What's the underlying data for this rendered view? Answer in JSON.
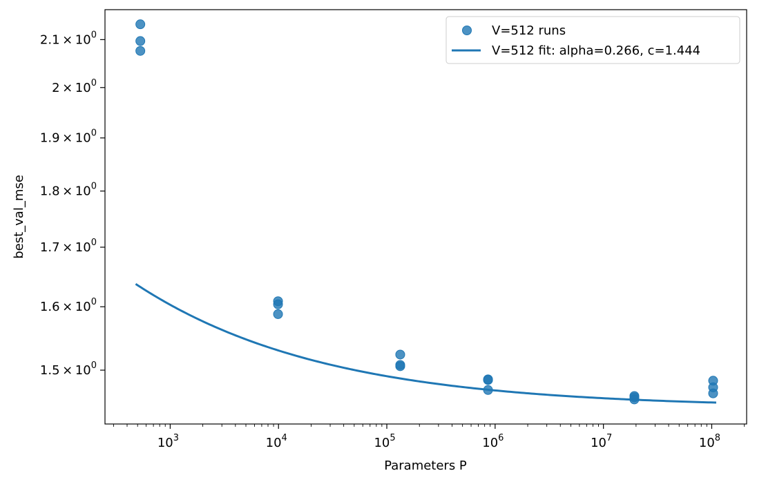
{
  "chart_data": {
    "type": "scatter",
    "xlabel": "Parameters P",
    "ylabel": "best_val_mse",
    "xscale": "log",
    "yscale": "log",
    "xlim": [
      250,
      210000000
    ],
    "ylim": [
      1.42,
      2.165
    ],
    "x_ticks": [
      {
        "value": 1000,
        "base": "10",
        "exp": "3"
      },
      {
        "value": 10000,
        "base": "10",
        "exp": "4"
      },
      {
        "value": 100000,
        "base": "10",
        "exp": "5"
      },
      {
        "value": 1000000,
        "base": "10",
        "exp": "6"
      },
      {
        "value": 10000000,
        "base": "10",
        "exp": "7"
      },
      {
        "value": 100000000,
        "base": "10",
        "exp": "8"
      }
    ],
    "y_ticks": [
      {
        "value": 2.1,
        "mant": "2.1",
        "times": "×",
        "base": "10",
        "exp": "0"
      },
      {
        "value": 2.0,
        "mant": "2",
        "times": "×",
        "base": "10",
        "exp": "0"
      },
      {
        "value": 1.9,
        "mant": "1.9",
        "times": "×",
        "base": "10",
        "exp": "0"
      },
      {
        "value": 1.8,
        "mant": "1.8",
        "times": "×",
        "base": "10",
        "exp": "0"
      },
      {
        "value": 1.7,
        "mant": "1.7",
        "times": "×",
        "base": "10",
        "exp": "0"
      },
      {
        "value": 1.6,
        "mant": "1.6",
        "times": "×",
        "base": "10",
        "exp": "0"
      },
      {
        "value": 1.5,
        "mant": "1.5",
        "times": "×",
        "base": "10",
        "exp": "0"
      }
    ],
    "grid": false,
    "legend_position": "top-right",
    "series": [
      {
        "name": "V=512 runs",
        "kind": "scatter",
        "color": "#1f77b4",
        "points": [
          [
            530,
            2.133
          ],
          [
            530,
            2.097
          ],
          [
            530,
            2.076
          ],
          [
            9900,
            1.609
          ],
          [
            9900,
            1.604
          ],
          [
            9900,
            1.588
          ],
          [
            133000,
            1.524
          ],
          [
            133000,
            1.508
          ],
          [
            133000,
            1.506
          ],
          [
            860000,
            1.486
          ],
          [
            860000,
            1.485
          ],
          [
            860000,
            1.47
          ],
          [
            19300000,
            1.461
          ],
          [
            19300000,
            1.459
          ],
          [
            19300000,
            1.456
          ],
          [
            103000000,
            1.484
          ],
          [
            103000000,
            1.474
          ],
          [
            103000000,
            1.465
          ]
        ]
      },
      {
        "name": "V=512 fit: alpha=0.266, c=1.444",
        "kind": "line",
        "color": "#1f77b4",
        "alpha": 0.266,
        "c": 1.444,
        "x_range": [
          480,
          110000000
        ]
      }
    ]
  }
}
